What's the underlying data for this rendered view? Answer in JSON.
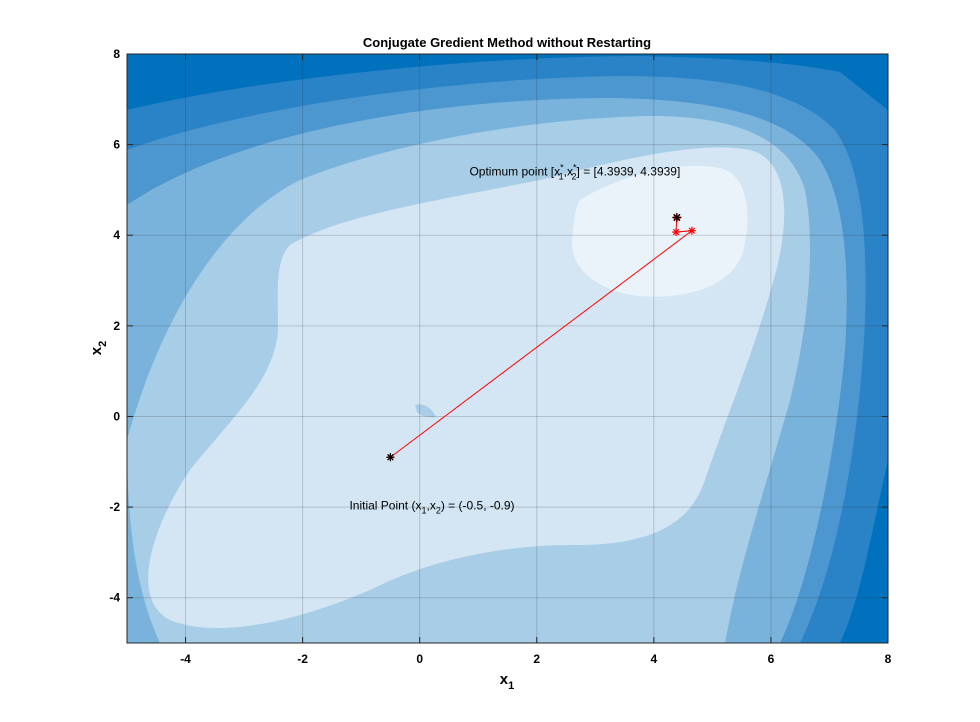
{
  "chart_data": {
    "type": "contour",
    "title": "Conjugate Gredient Method without Restarting",
    "xlabel": "x",
    "xlabel_sub": "1",
    "ylabel": "x",
    "ylabel_sub": "2",
    "xlim": [
      -5,
      8
    ],
    "ylim": [
      -5,
      8
    ],
    "xticks": [
      "-4",
      "-2",
      "0",
      "2",
      "4",
      "6",
      "8"
    ],
    "yticks": [
      "-4",
      "-2",
      "0",
      "2",
      "4",
      "6",
      "8"
    ],
    "xtick_values": [
      -4,
      -2,
      0,
      2,
      4,
      6,
      8
    ],
    "ytick_values": [
      -4,
      -2,
      0,
      2,
      4,
      6,
      8
    ],
    "grid": true,
    "contour_colors": [
      "#0071bc",
      "#2a83c6",
      "#4d97d0",
      "#79b3dc",
      "#a8cde7",
      "#d4e6f3",
      "#eaf3fa"
    ],
    "path": {
      "color": "#ff0000",
      "points": [
        {
          "x": -0.5,
          "y": -0.9
        },
        {
          "x": 4.65,
          "y": 4.1
        },
        {
          "x": 4.38,
          "y": 4.07
        },
        {
          "x": 4.39,
          "y": 4.38
        },
        {
          "x": 4.3939,
          "y": 4.3939
        }
      ]
    },
    "initial_point": {
      "x": -0.5,
      "y": -0.9
    },
    "optimum_point": {
      "x": 4.3939,
      "y": 4.3939
    },
    "annotations": {
      "initial": {
        "prefix": "Initial Point (x",
        "s1": "1",
        "mid": ",x",
        "s2": "2",
        "suffix": ") = (-0.5, -0.9)",
        "x": -1.2,
        "y": -2.05
      },
      "optimum": {
        "prefix": "Optimum point [x",
        "sup1": "*",
        "s1": "1",
        "mid": ",x",
        "sup2": "*",
        "s2": "2",
        "suffix": "] = [4.3939, 4.3939]",
        "x": 0.85,
        "y": 5.32
      }
    }
  }
}
